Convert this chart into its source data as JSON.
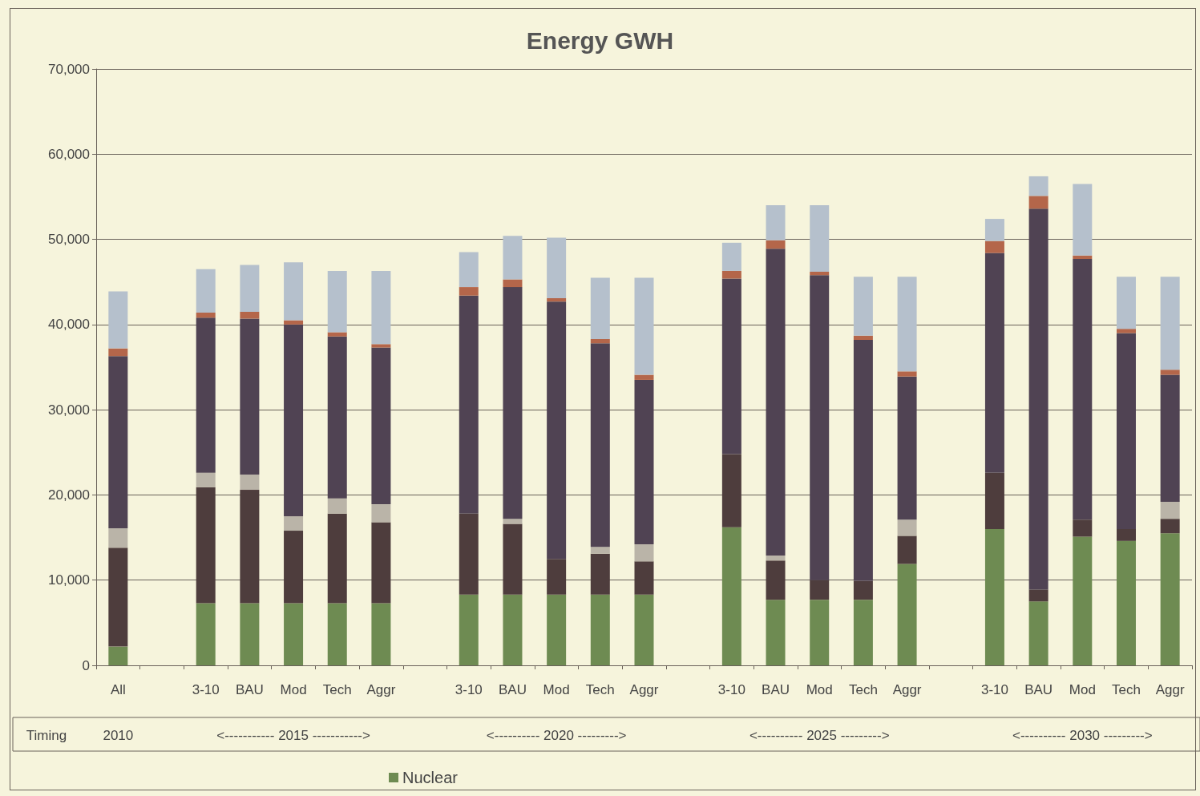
{
  "chart_data": {
    "type": "bar",
    "title": "Energy GWH",
    "stacked": true,
    "grid": "y",
    "legend": "bottom",
    "categories": [
      "All",
      null,
      "3-10",
      "BAU",
      "Mod",
      "Tech",
      "Aggr",
      null,
      "3-10",
      "BAU",
      "Mod",
      "Tech",
      "Aggr",
      null,
      "3-10",
      "BAU",
      "Mod",
      "Tech",
      "Aggr",
      null,
      "3-10",
      "BAU",
      "Mod",
      "Tech",
      "Aggr"
    ],
    "ylim": [
      0,
      70000
    ],
    "yticks": [
      0,
      {
        "value": 10000,
        "label": "10,000"
      },
      {
        "value": 20000,
        "label": "20,000"
      },
      {
        "value": 30000,
        "label": "30,000"
      },
      {
        "value": 40000,
        "label": "40,000"
      },
      {
        "value": 50000,
        "label": "50,000"
      },
      {
        "value": 60000,
        "label": "60,000"
      },
      {
        "value": 70000,
        "label": "70,000"
      }
    ],
    "annotations": [
      "Timing",
      "2010",
      "<----------- 2015 ----------->",
      "<---------- 2020 --------->",
      "<---------- 2025 --------->",
      "<---------- 2030 --------->"
    ],
    "series": [
      {
        "name": "Nuclear",
        "color": "#6e8b52",
        "values": [
          2200,
          null,
          7300,
          7300,
          7300,
          7300,
          7300,
          null,
          8300,
          8300,
          8300,
          8300,
          8300,
          null,
          16200,
          7700,
          7700,
          7700,
          11900,
          null,
          16000,
          7500,
          15100,
          14600,
          15500
        ]
      },
      {
        "color": "#4e3d3d",
        "values": [
          11600,
          null,
          13600,
          13300,
          8500,
          10500,
          9500,
          null,
          9500,
          8300,
          4200,
          4800,
          3900,
          null,
          8600,
          4600,
          2300,
          2200,
          3300,
          null,
          6600,
          1400,
          2000,
          1400,
          1700
        ]
      },
      {
        "color": "#bab4a8",
        "values": [
          2300,
          null,
          1700,
          1800,
          1700,
          1800,
          2100,
          null,
          0,
          600,
          0,
          800,
          2000,
          null,
          0,
          600,
          0,
          0,
          1900,
          null,
          0,
          0,
          0,
          0,
          2000
        ]
      },
      {
        "color": "#504353",
        "values": [
          20200,
          null,
          18200,
          18300,
          22500,
          19000,
          18400,
          null,
          25600,
          27200,
          30200,
          23900,
          19300,
          null,
          20600,
          36000,
          35800,
          28300,
          16800,
          null,
          25800,
          44700,
          30600,
          23000,
          14900
        ]
      },
      {
        "color": "#b4664a",
        "values": [
          900,
          null,
          600,
          800,
          500,
          500,
          400,
          null,
          1000,
          900,
          400,
          500,
          600,
          null,
          900,
          1000,
          400,
          500,
          600,
          null,
          1400,
          1500,
          400,
          500,
          600
        ]
      },
      {
        "color": "#b5c0cc",
        "values": [
          6700,
          null,
          5100,
          5500,
          6800,
          7200,
          8600,
          null,
          4100,
          5100,
          7100,
          7200,
          11400,
          null,
          3300,
          4100,
          7800,
          6900,
          11100,
          null,
          2600,
          2300,
          8400,
          6100,
          10900
        ]
      }
    ]
  }
}
